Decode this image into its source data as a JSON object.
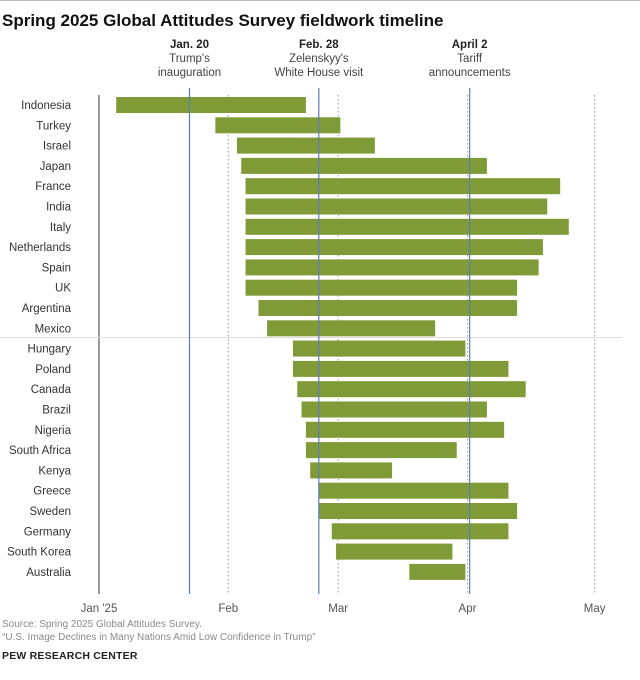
{
  "chart_data": {
    "type": "bar",
    "subtype": "horizontal-range (gantt)",
    "title": "Spring 2025 Global Attitudes Survey fieldwork timeline",
    "x_axis": {
      "unit": "days since Jan 1, 2025",
      "range": [
        0,
        120
      ],
      "ticks": [
        {
          "label": "Jan '25",
          "day": 0
        },
        {
          "label": "Feb",
          "day": 30
        },
        {
          "label": "Mar",
          "day": 55.5
        },
        {
          "label": "Apr",
          "day": 85.5
        },
        {
          "label": "May",
          "day": 115
        }
      ]
    },
    "events": [
      {
        "date_label": "Jan. 20",
        "line1": "Trump's",
        "line2": "inauguration",
        "day": 21
      },
      {
        "date_label": "Feb. 28",
        "line1": "Zelenskyy's",
        "line2": "White House visit",
        "day": 51
      },
      {
        "date_label": "April 2",
        "line1": "Tariff",
        "line2": "announcements",
        "day": 86
      }
    ],
    "group_divider_after": "Mexico",
    "categories": [
      "Indonesia",
      "Turkey",
      "Israel",
      "Japan",
      "France",
      "India",
      "Italy",
      "Netherlands",
      "Spain",
      "UK",
      "Argentina",
      "Mexico",
      "Hungary",
      "Poland",
      "Canada",
      "Brazil",
      "Nigeria",
      "South Africa",
      "Kenya",
      "Greece",
      "Sweden",
      "Germany",
      "South Korea",
      "Australia"
    ],
    "series": [
      {
        "name": "Fieldwork period",
        "start": [
          4,
          27,
          32,
          33,
          34,
          34,
          34,
          34,
          34,
          34,
          37,
          39,
          45,
          45,
          46,
          47,
          48,
          48,
          49,
          51,
          51,
          54,
          55,
          72
        ],
        "end": [
          48,
          56,
          64,
          90,
          107,
          104,
          109,
          103,
          102,
          97,
          97,
          78,
          85,
          95,
          99,
          90,
          94,
          83,
          68,
          95,
          97,
          95,
          82,
          85
        ]
      }
    ],
    "bar_color": "#7f9a36"
  },
  "footer": {
    "source": "Source: Spring 2025 Global Attitudes Survey.",
    "report": "“U.S. Image Declines in Many Nations Amid Low Confidence in Trump”",
    "brand": "PEW RESEARCH CENTER"
  }
}
